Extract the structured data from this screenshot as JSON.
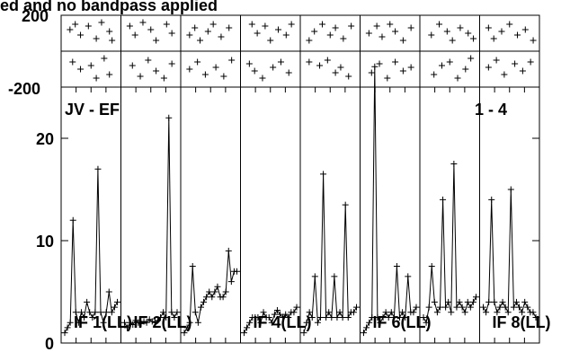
{
  "chart_data": {
    "type": "line",
    "title": "ed and no bandpass applied",
    "baseline_label": "JV - EF",
    "pol_label": "1 - 4",
    "phase": {
      "ylim": [
        -200,
        200
      ],
      "ticks": [
        "200",
        "-200"
      ],
      "panels": [
        [
          [
            0.1,
            120
          ],
          [
            0.2,
            150
          ],
          [
            0.3,
            90
          ],
          [
            0.45,
            140
          ],
          [
            0.6,
            70
          ],
          [
            0.7,
            160
          ],
          [
            0.85,
            110
          ],
          [
            0.9,
            60
          ],
          [
            0.15,
            -60
          ],
          [
            0.3,
            -100
          ],
          [
            0.5,
            -80
          ],
          [
            0.6,
            -150
          ],
          [
            0.75,
            -40
          ],
          [
            0.85,
            -130
          ]
        ],
        [
          [
            0.1,
            140
          ],
          [
            0.2,
            90
          ],
          [
            0.35,
            160
          ],
          [
            0.5,
            120
          ],
          [
            0.6,
            60
          ],
          [
            0.8,
            150
          ],
          [
            0.9,
            100
          ],
          [
            0.15,
            -80
          ],
          [
            0.3,
            -140
          ],
          [
            0.45,
            -50
          ],
          [
            0.6,
            -110
          ],
          [
            0.75,
            -150
          ],
          [
            0.9,
            -70
          ]
        ],
        [
          [
            0.1,
            90
          ],
          [
            0.2,
            130
          ],
          [
            0.3,
            60
          ],
          [
            0.45,
            110
          ],
          [
            0.55,
            150
          ],
          [
            0.7,
            80
          ],
          [
            0.85,
            130
          ],
          [
            0.1,
            -100
          ],
          [
            0.25,
            -60
          ],
          [
            0.4,
            -130
          ],
          [
            0.6,
            -90
          ],
          [
            0.75,
            -140
          ],
          [
            0.9,
            -50
          ]
        ],
        [
          [
            0.15,
            150
          ],
          [
            0.25,
            100
          ],
          [
            0.4,
            140
          ],
          [
            0.5,
            60
          ],
          [
            0.65,
            120
          ],
          [
            0.8,
            90
          ],
          [
            0.9,
            150
          ],
          [
            0.1,
            -70
          ],
          [
            0.2,
            -110
          ],
          [
            0.35,
            -150
          ],
          [
            0.55,
            -90
          ],
          [
            0.7,
            -60
          ],
          [
            0.85,
            -120
          ]
        ],
        [
          [
            0.1,
            60
          ],
          [
            0.2,
            110
          ],
          [
            0.35,
            150
          ],
          [
            0.5,
            90
          ],
          [
            0.6,
            130
          ],
          [
            0.75,
            70
          ],
          [
            0.9,
            140
          ],
          [
            0.1,
            -60
          ],
          [
            0.3,
            -80
          ],
          [
            0.45,
            -50
          ],
          [
            0.6,
            -120
          ],
          [
            0.7,
            -90
          ],
          [
            0.85,
            -140
          ]
        ],
        [
          [
            0.1,
            100
          ],
          [
            0.25,
            140
          ],
          [
            0.35,
            80
          ],
          [
            0.5,
            150
          ],
          [
            0.6,
            110
          ],
          [
            0.75,
            60
          ],
          [
            0.9,
            130
          ],
          [
            0.15,
            -120
          ],
          [
            0.3,
            -70
          ],
          [
            0.45,
            -150
          ],
          [
            0.6,
            -60
          ],
          [
            0.75,
            -110
          ],
          [
            0.9,
            -90
          ]
        ],
        [
          [
            0.15,
            90
          ],
          [
            0.3,
            150
          ],
          [
            0.45,
            110
          ],
          [
            0.55,
            60
          ],
          [
            0.7,
            130
          ],
          [
            0.85,
            100
          ],
          [
            0.95,
            70
          ],
          [
            0.2,
            -130
          ],
          [
            0.35,
            -80
          ],
          [
            0.5,
            -60
          ],
          [
            0.65,
            -150
          ],
          [
            0.8,
            -100
          ],
          [
            0.9,
            -40
          ]
        ],
        [
          [
            0.1,
            130
          ],
          [
            0.2,
            70
          ],
          [
            0.35,
            110
          ],
          [
            0.5,
            150
          ],
          [
            0.65,
            90
          ],
          [
            0.8,
            120
          ],
          [
            0.95,
            60
          ],
          [
            0.1,
            -90
          ],
          [
            0.25,
            -50
          ],
          [
            0.4,
            -130
          ],
          [
            0.6,
            -70
          ],
          [
            0.75,
            -110
          ],
          [
            0.9,
            -60
          ]
        ]
      ]
    },
    "amplitude": {
      "ylim": [
        0,
        25
      ],
      "ticks": [
        {
          "value": 20,
          "label": "20"
        },
        {
          "value": 10,
          "label": "10"
        },
        {
          "value": 0,
          "label": "0"
        }
      ],
      "panels": [
        {
          "label": "IF 1(LL)",
          "values": [
            1,
            1.5,
            2,
            12,
            3,
            2,
            3,
            2.5,
            4,
            3,
            2.5,
            3,
            17,
            3,
            2,
            3,
            5,
            3,
            3.5,
            4
          ]
        },
        {
          "label": "IF 2(LL)",
          "values": [
            2,
            1.5,
            2,
            1.8,
            2.2,
            2,
            1.9,
            2.1,
            2,
            2.3,
            2.1,
            2,
            2.2,
            2.5,
            3,
            2.5,
            22,
            3,
            2.5,
            3
          ]
        },
        {
          "label": "",
          "values": [
            1,
            1.5,
            2,
            7.5,
            3,
            2,
            3.5,
            4,
            4.5,
            5,
            4.5,
            5,
            5.5,
            4.5,
            4.5,
            5,
            9,
            6,
            7,
            7
          ]
        },
        {
          "label": "IF 4(LL)",
          "values": [
            1,
            1.5,
            2,
            2.5,
            2.5,
            2.5,
            2,
            3,
            2.5,
            2.5,
            2,
            2.8,
            3.2,
            2.8,
            2.5,
            2.8,
            2.5,
            3,
            3,
            3.5
          ]
        },
        {
          "label": "",
          "values": [
            1,
            2,
            3,
            2.5,
            6.5,
            2,
            2.5,
            16.5,
            2.5,
            3,
            2.5,
            6.5,
            2.5,
            3,
            2.5,
            13.5,
            2.5,
            3,
            3,
            3.5
          ]
        },
        {
          "label": "IF 6(LL)",
          "values": [
            1,
            1.5,
            2,
            2.5,
            27,
            2.5,
            2,
            2.5,
            3,
            2.5,
            3,
            2.5,
            7.5,
            2.5,
            3,
            2.5,
            6.5,
            3,
            3,
            3.5
          ]
        },
        {
          "label": "",
          "values": [
            2.5,
            2,
            3.5,
            7.5,
            4,
            3,
            3.5,
            14,
            3.5,
            4,
            3,
            17.5,
            3.5,
            4,
            3.5,
            3,
            4,
            3.5,
            4,
            4.5
          ]
        },
        {
          "label": "IF 8(LL)",
          "values": [
            3.5,
            3,
            4,
            14,
            4,
            3,
            3.5,
            4,
            3.5,
            3,
            15,
            3.5,
            4,
            3.5,
            3,
            4,
            3.5,
            3,
            3,
            2.5
          ]
        }
      ]
    }
  }
}
